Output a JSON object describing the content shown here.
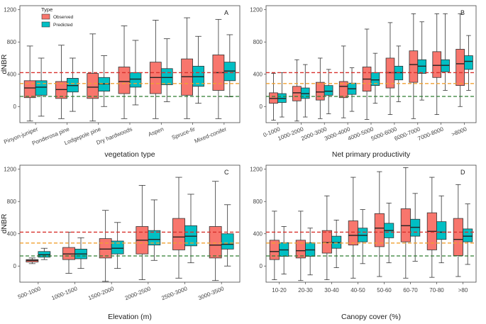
{
  "colors": {
    "observed": "#F8766D",
    "predicted": "#00BFC4",
    "red_line": "#d7302c",
    "orange_line": "#f0a030",
    "green_line": "#2e7d32"
  },
  "legend": {
    "title": "Type",
    "observed_label": "Observed",
    "predicted_label": "Predicted"
  },
  "chart_data": [
    {
      "type": "boxplot",
      "panel_label": "A",
      "xlabel": "vegetation type",
      "ylabel": "dNBR",
      "ylim": [
        -200,
        1250
      ],
      "yticks": [
        0,
        400,
        800,
        1200
      ],
      "ref_lines": [
        420,
        285,
        125
      ],
      "tick_rotate": true,
      "categories": [
        "Pinyon-juniper",
        "Ponderosa pine",
        "Lodgepole pine",
        "Dry hardwoods",
        "Aspen",
        "Spruce-fir",
        "Mixed-conifer"
      ],
      "series": [
        {
          "name": "Observed",
          "boxes": [
            [
              -180,
              110,
              230,
              320,
              750
            ],
            [
              -150,
              100,
              210,
              310,
              760
            ],
            [
              -180,
              100,
              240,
              410,
              900
            ],
            [
              -150,
              160,
              310,
              490,
              1000
            ],
            [
              -150,
              160,
              360,
              550,
              1070
            ],
            [
              -150,
              140,
              370,
              590,
              1100
            ],
            [
              -150,
              200,
              420,
              640,
              1080
            ]
          ]
        },
        {
          "name": "Predicted",
          "boxes": [
            [
              -120,
              140,
              240,
              320,
              600
            ],
            [
              -60,
              180,
              260,
              350,
              600
            ],
            [
              0,
              190,
              280,
              360,
              630
            ],
            [
              20,
              240,
              340,
              420,
              820
            ],
            [
              60,
              270,
              360,
              470,
              840
            ],
            [
              40,
              250,
              370,
              500,
              870
            ],
            [
              120,
              320,
              440,
              550,
              890
            ]
          ]
        }
      ]
    },
    {
      "type": "boxplot",
      "panel_label": "B",
      "xlabel": "Net primary productivity",
      "ylabel": "",
      "ylim": [
        -200,
        1250
      ],
      "yticks": [
        0,
        400,
        800,
        1200
      ],
      "ref_lines": [
        420,
        285,
        125
      ],
      "tick_rotate": true,
      "categories": [
        "0-1000",
        "1000-2000",
        "2000-3000",
        "3000-4000",
        "4000-5000",
        "5000-6000",
        "6000-7000",
        "7000-8000",
        ">8000"
      ],
      "series": [
        {
          "name": "Observed",
          "boxes": [
            [
              -170,
              40,
              100,
              170,
              410
            ],
            [
              -180,
              70,
              170,
              250,
              580
            ],
            [
              -150,
              80,
              180,
              300,
              600
            ],
            [
              -140,
              110,
              250,
              310,
              750
            ],
            [
              -160,
              190,
              340,
              490,
              960
            ],
            [
              -100,
              230,
              420,
              600,
              1040
            ],
            [
              -150,
              300,
              520,
              690,
              1150
            ],
            [
              -100,
              360,
              510,
              680,
              1150
            ],
            [
              0,
              260,
              530,
              710,
              1150
            ]
          ]
        },
        {
          "name": "Predicted",
          "boxes": [
            [
              -130,
              50,
              100,
              160,
              420
            ],
            [
              -130,
              100,
              160,
              230,
              520
            ],
            [
              -90,
              140,
              190,
              260,
              460
            ],
            [
              -60,
              150,
              220,
              290,
              480
            ],
            [
              40,
              260,
              330,
              420,
              660
            ],
            [
              60,
              330,
              420,
              500,
              750
            ],
            [
              80,
              410,
              500,
              580,
              1050
            ],
            [
              200,
              430,
              510,
              580,
              1150
            ],
            [
              200,
              460,
              560,
              630,
              880
            ]
          ]
        }
      ]
    },
    {
      "type": "boxplot",
      "panel_label": "C",
      "xlabel": "Elevation (m)",
      "ylabel": "dNBR",
      "ylim": [
        -200,
        1250
      ],
      "yticks": [
        0,
        400,
        800,
        1200
      ],
      "ref_lines": [
        420,
        285,
        125
      ],
      "tick_rotate": true,
      "categories": [
        "500-1000",
        "1000-1500",
        "1500-2000",
        "2000-2500",
        "2500-3000",
        "3000-3500"
      ],
      "series": [
        {
          "name": "Observed",
          "boxes": [
            [
              30,
              50,
              70,
              80,
              100
            ],
            [
              -90,
              80,
              150,
              230,
              420
            ],
            [
              -190,
              100,
              210,
              340,
              690
            ],
            [
              -170,
              150,
              320,
              490,
              1000
            ],
            [
              -150,
              200,
              360,
              590,
              1100
            ],
            [
              -180,
              100,
              260,
              490,
              1050
            ]
          ]
        },
        {
          "name": "Predicted",
          "boxes": [
            [
              80,
              110,
              140,
              180,
              220
            ],
            [
              -30,
              90,
              150,
              210,
              350
            ],
            [
              -30,
              150,
              220,
              310,
              540
            ],
            [
              70,
              260,
              330,
              440,
              820
            ],
            [
              40,
              250,
              370,
              500,
              890
            ],
            [
              0,
              210,
              270,
              400,
              760
            ]
          ]
        }
      ]
    },
    {
      "type": "boxplot",
      "panel_label": "D",
      "xlabel": "Canopy cover (%)",
      "ylabel": "",
      "ylim": [
        -200,
        1250
      ],
      "yticks": [
        0,
        400,
        800,
        1200
      ],
      "ref_lines": [
        420,
        285,
        125
      ],
      "tick_rotate": false,
      "categories": [
        "10-20",
        "20-30",
        "30-40",
        "40-50",
        "50-60",
        "60-70",
        "70-80",
        ">80"
      ],
      "series": [
        {
          "name": "Observed",
          "boxes": [
            [
              -170,
              80,
              180,
              320,
              680
            ],
            [
              -180,
              100,
              190,
              320,
              680
            ],
            [
              -170,
              160,
              290,
              440,
              870
            ],
            [
              -150,
              260,
              380,
              560,
              1100
            ],
            [
              -130,
              240,
              470,
              650,
              1170
            ],
            [
              -150,
              300,
              500,
              710,
              1220
            ],
            [
              -140,
              200,
              430,
              660,
              1100
            ],
            [
              -130,
              130,
              330,
              590,
              1010
            ]
          ]
        },
        {
          "name": "Predicted",
          "boxes": [
            [
              -100,
              120,
              200,
              290,
              490
            ],
            [
              -110,
              120,
              200,
              290,
              470
            ],
            [
              -20,
              220,
              290,
              370,
              570
            ],
            [
              30,
              300,
              380,
              470,
              700
            ],
            [
              40,
              350,
              440,
              530,
              780
            ],
            [
              60,
              370,
              480,
              580,
              900
            ],
            [
              40,
              330,
              420,
              550,
              870
            ],
            [
              20,
              300,
              370,
              460,
              770
            ]
          ]
        }
      ]
    }
  ]
}
